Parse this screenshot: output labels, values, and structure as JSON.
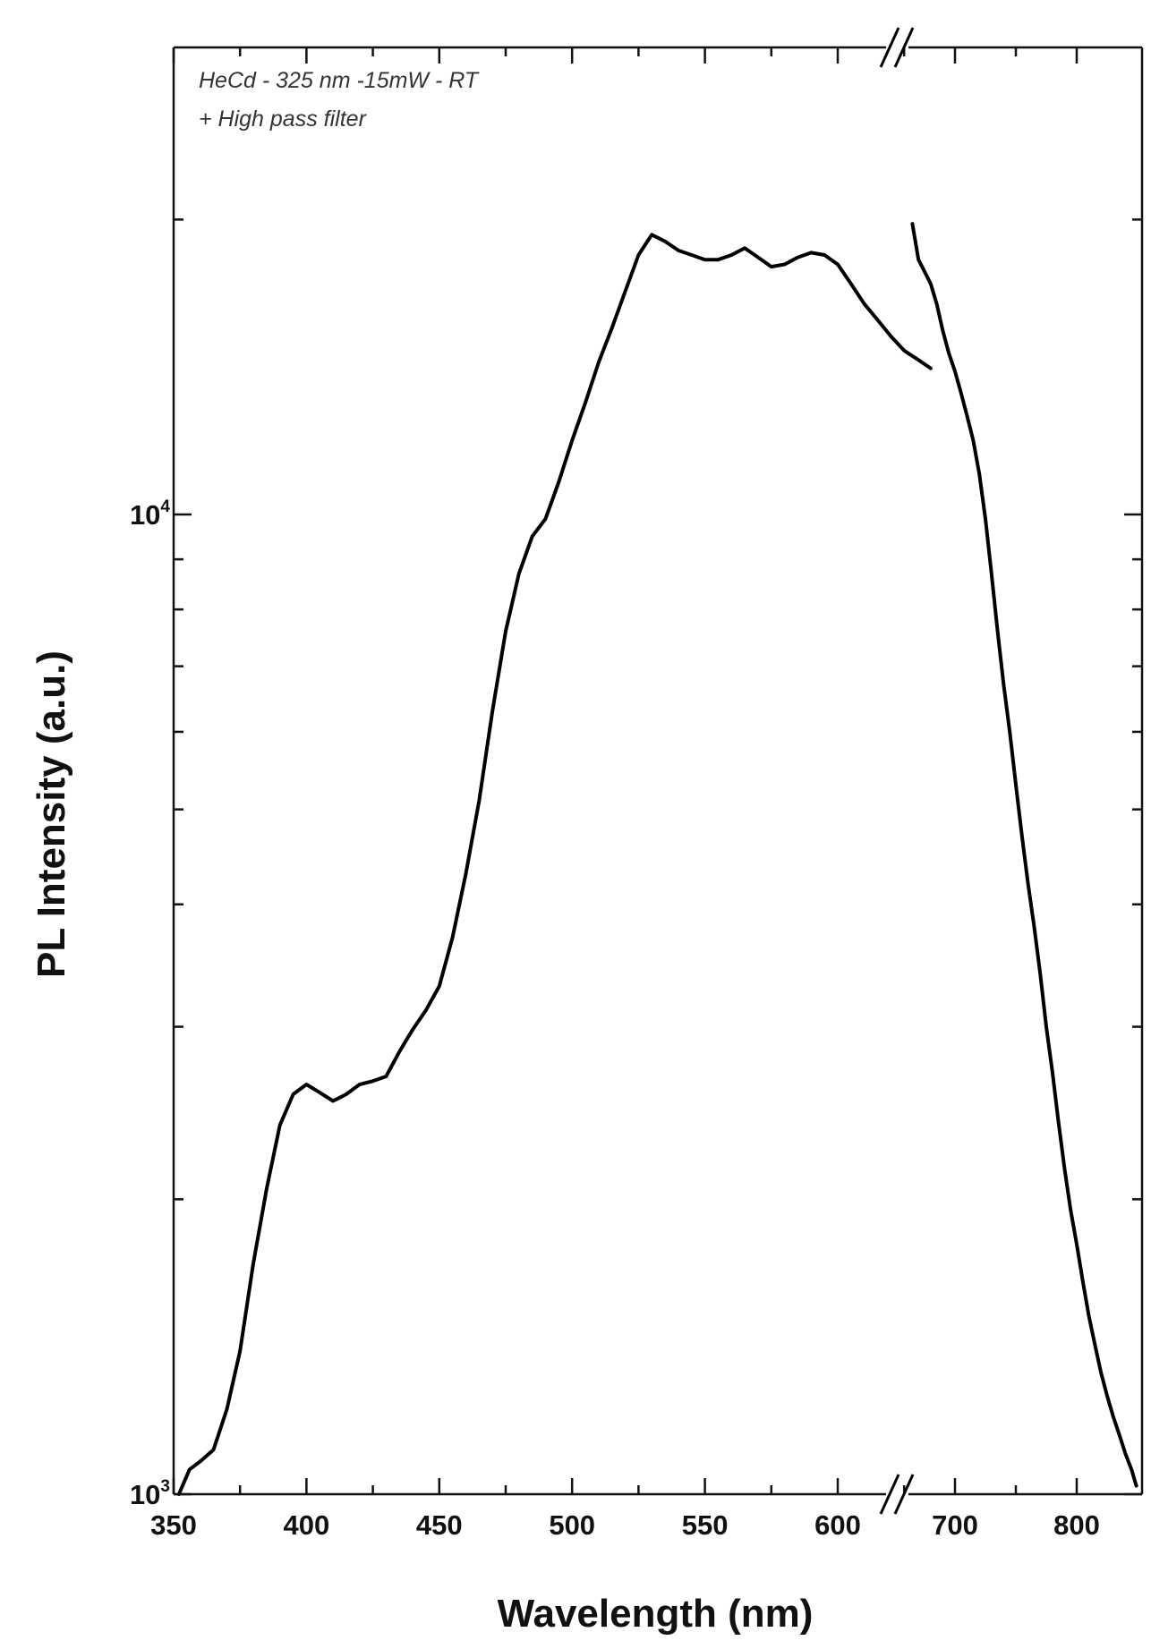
{
  "chart_data": {
    "type": "line",
    "xlabel": "Wavelength (nm)",
    "ylabel": "PL Intensity (a.u.)",
    "y_scale": "log",
    "ylim": [
      1000,
      40000
    ],
    "x_axis_break": {
      "left_segment": [
        350,
        640
      ],
      "right_segment": [
        660,
        850
      ]
    },
    "x_tick_labels": [
      "350",
      "400",
      "450",
      "500",
      "550",
      "600",
      "700",
      "800"
    ],
    "x_ticks": [
      350,
      400,
      450,
      500,
      550,
      600,
      700,
      800
    ],
    "y_tick_labels": [
      {
        "base": "10",
        "exp": "3"
      },
      {
        "base": "10",
        "exp": "4"
      }
    ],
    "y_major_ticks": [
      1000,
      10000
    ],
    "annotations": [
      "HeCd - 325 nm -15mW - RT",
      "+ High pass filter"
    ],
    "series": [
      {
        "segments": [
          {
            "x": [
              352,
              356,
              360,
              365,
              370,
              375,
              380,
              385,
              390,
              395,
              400,
              405,
              410,
              415,
              420,
              425,
              430,
              435,
              440,
              445,
              450,
              455,
              460,
              465,
              470,
              475,
              480,
              485,
              490,
              495,
              500,
              505,
              510,
              515,
              520,
              525,
              530,
              535,
              540,
              545,
              550,
              555,
              560,
              565,
              570,
              575,
              580,
              585,
              590,
              595,
              600,
              605,
              610,
              615,
              620,
              625,
              630,
              635
            ],
            "y": [
              1000,
              1060,
              1080,
              1110,
              1220,
              1400,
              1720,
              2050,
              2380,
              2560,
              2620,
              2570,
              2520,
              2560,
              2620,
              2640,
              2670,
              2830,
              2980,
              3120,
              3300,
              3700,
              4300,
              5100,
              6300,
              7600,
              8700,
              9500,
              9900,
              10800,
              11900,
              13000,
              14300,
              15500,
              16900,
              18400,
              19300,
              19000,
              18600,
              18400,
              18200,
              18200,
              18400,
              18700,
              18300,
              17900,
              18000,
              18300,
              18500,
              18400,
              18000,
              17200,
              16400,
              15800,
              15200,
              14700,
              14400,
              14100
            ]
          },
          {
            "x": [
              665,
              670,
              675,
              680,
              685,
              690,
              695,
              700,
              705,
              710,
              715,
              720,
              725,
              730,
              735,
              740,
              745,
              750,
              755,
              760,
              765,
              770,
              775,
              780,
              785,
              790,
              795,
              800,
              805,
              810,
              815,
              820,
              825,
              830,
              835,
              840,
              845,
              849
            ],
            "y": [
              19800,
              18200,
              17700,
              17200,
              16400,
              15400,
              14600,
              14000,
              13300,
              12600,
              11900,
              11000,
              9900,
              8700,
              7600,
              6700,
              6000,
              5300,
              4700,
              4200,
              3800,
              3400,
              3000,
              2700,
              2400,
              2150,
              1950,
              1800,
              1650,
              1520,
              1420,
              1330,
              1260,
              1200,
              1150,
              1100,
              1060,
              1020
            ]
          }
        ]
      }
    ]
  }
}
